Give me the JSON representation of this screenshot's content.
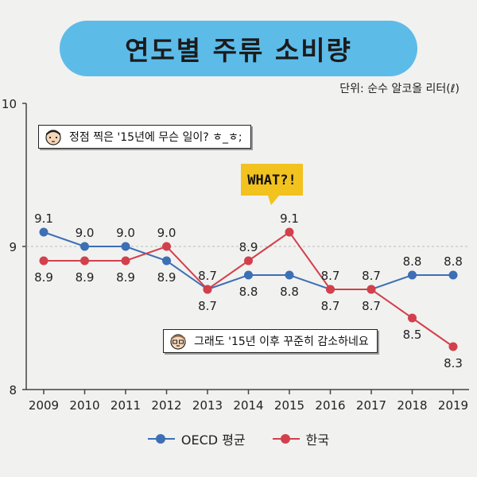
{
  "header": {
    "title": "연도별 주류 소비량",
    "unit": "단위: 순수 알코올 리터(ℓ)"
  },
  "callouts": {
    "top": "정점 찍은 '15년에 무슨 일이? ㅎ_ㅎ;",
    "bottom": "그래도 '15년 이후 꾸준히 감소하네요",
    "what": "WHAT?!"
  },
  "colors": {
    "oecd": "#3d6fb4",
    "korea": "#d2404b",
    "title_bg": "#5dbbe8",
    "sticker": "#f2c21e"
  },
  "chart_data": {
    "type": "line",
    "x": [
      "2009",
      "2010",
      "2011",
      "2012",
      "2013",
      "2014",
      "2015",
      "2016",
      "2017",
      "2018",
      "2019"
    ],
    "ylim": [
      8,
      10
    ],
    "yticks": [
      "8",
      "9",
      "10"
    ],
    "grid": "dashed line at 9",
    "legend_position": "bottom",
    "series": [
      {
        "name": "OECD 평균",
        "values": [
          9.1,
          9.0,
          9.0,
          8.9,
          8.7,
          8.8,
          8.8,
          8.7,
          8.7,
          8.8,
          8.8
        ],
        "labels": [
          "9.1",
          "9.0",
          "9.0",
          "8.9",
          "8.7",
          "8.8",
          "8.8",
          "8.7",
          "8.7",
          "8.8",
          "8.8"
        ]
      },
      {
        "name": "한국",
        "values": [
          8.9,
          8.9,
          8.9,
          9.0,
          8.7,
          8.9,
          9.1,
          8.7,
          8.7,
          8.5,
          8.3
        ],
        "labels": [
          "8.9",
          "8.9",
          "8.9",
          "9.0",
          "8.7",
          "8.9",
          "9.1",
          "8.7",
          "8.7",
          "8.5",
          "8.3"
        ]
      }
    ]
  }
}
